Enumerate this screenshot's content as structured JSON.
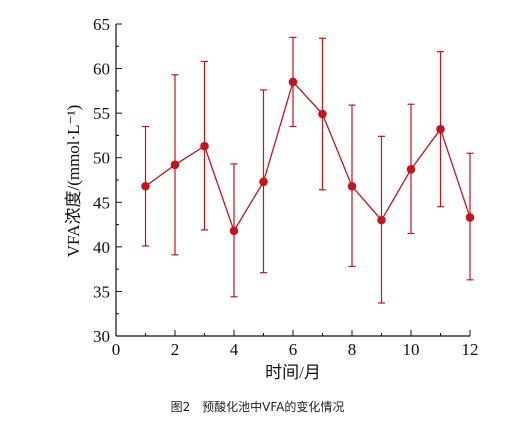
{
  "chart_data": {
    "type": "line",
    "xlabel": "时间/月",
    "ylabel": "VFA浓度/(mmol·L⁻¹)",
    "xlim": [
      0,
      12
    ],
    "ylim": [
      30,
      65
    ],
    "x_ticks": [
      0,
      2,
      4,
      6,
      8,
      10,
      12
    ],
    "y_ticks": [
      30,
      35,
      40,
      45,
      50,
      55,
      60,
      65
    ],
    "grid": false,
    "series": [
      {
        "color": "#c0161e",
        "points": [
          {
            "x": 1,
            "y": 46.8,
            "err_low": 40.1,
            "err_high": 53.5
          },
          {
            "x": 2,
            "y": 49.2,
            "err_low": 39.1,
            "err_high": 59.3
          },
          {
            "x": 3,
            "y": 51.3,
            "err_low": 41.9,
            "err_high": 60.8
          },
          {
            "x": 4,
            "y": 41.8,
            "err_low": 34.4,
            "err_high": 49.3
          },
          {
            "x": 5,
            "y": 47.3,
            "err_low": 37.1,
            "err_high": 57.6
          },
          {
            "x": 6,
            "y": 58.5,
            "err_low": 53.5,
            "err_high": 63.5
          },
          {
            "x": 7,
            "y": 54.9,
            "err_low": 46.4,
            "err_high": 63.4
          },
          {
            "x": 8,
            "y": 46.8,
            "err_low": 37.8,
            "err_high": 55.9
          },
          {
            "x": 9,
            "y": 43.0,
            "err_low": 33.7,
            "err_high": 52.4
          },
          {
            "x": 10,
            "y": 48.7,
            "err_low": 41.5,
            "err_high": 56.0
          },
          {
            "x": 11,
            "y": 53.2,
            "err_low": 44.5,
            "err_high": 61.9
          },
          {
            "x": 12,
            "y": 43.3,
            "err_low": 36.3,
            "err_high": 50.5
          }
        ]
      }
    ]
  },
  "caption": {
    "figure_number": "图2",
    "text": "预酸化池中VFA的变化情况"
  }
}
